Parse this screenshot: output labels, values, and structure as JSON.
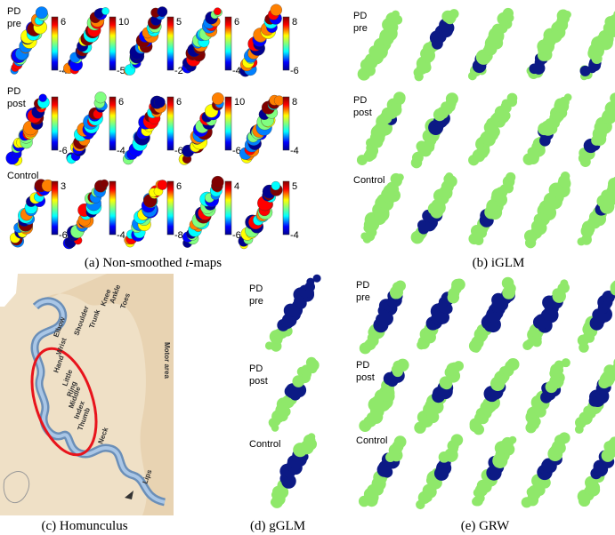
{
  "panels": {
    "a": {
      "caption": {
        "prefix": "(a) Non-smoothed ",
        "italic": "t",
        "suffix": "-maps"
      },
      "rows": [
        {
          "label": [
            "PD",
            "pre"
          ],
          "colorbars": [
            {
              "max": 6,
              "min": -4
            },
            {
              "max": 10,
              "min": -5
            },
            {
              "max": 5,
              "min": -2
            },
            {
              "max": 6,
              "min": -4
            },
            {
              "max": 8,
              "min": -6
            }
          ]
        },
        {
          "label": [
            "PD",
            "post"
          ],
          "colorbars": [
            {
              "min": -6
            },
            {
              "max": 6,
              "min": -4
            },
            {
              "max": 6,
              "min": -6
            },
            {
              "max": 10,
              "min": -6
            },
            {
              "max": 8,
              "min": -4
            }
          ]
        },
        {
          "label": [
            "Control"
          ],
          "colorbars": [
            {
              "max": 3,
              "min": -6
            },
            {
              "min": -4
            },
            {
              "max": 6,
              "min": -8
            },
            {
              "max": 4,
              "min": -6
            },
            {
              "max": 5,
              "min": -4
            }
          ]
        }
      ]
    },
    "b": {
      "caption": "(b) iGLM",
      "rows": [
        {
          "label": [
            "PD",
            "pre"
          ]
        },
        {
          "label": [
            "PD",
            "post"
          ]
        },
        {
          "label": [
            "Control"
          ]
        }
      ]
    },
    "c": {
      "caption": "(c) Homunculus",
      "labels": [
        "Motor area",
        "Trunk",
        "Shoulder",
        "Knee",
        "Ankle",
        "Toes",
        "Elbow",
        "Wrist",
        "Hand",
        "Little",
        "Ring",
        "Middle",
        "Index",
        "Thumb",
        "Neck",
        "Lips"
      ]
    },
    "d": {
      "caption": "(d) gGLM",
      "rows": [
        {
          "label": [
            "PD",
            "pre"
          ]
        },
        {
          "label": [
            "PD",
            "post"
          ]
        },
        {
          "label": [
            "Control"
          ]
        }
      ]
    },
    "e": {
      "caption": "(e) GRW",
      "rows": [
        {
          "label": [
            "PD",
            "pre"
          ]
        },
        {
          "label": [
            "PD",
            "post"
          ]
        },
        {
          "label": [
            "Control"
          ]
        }
      ]
    }
  }
}
